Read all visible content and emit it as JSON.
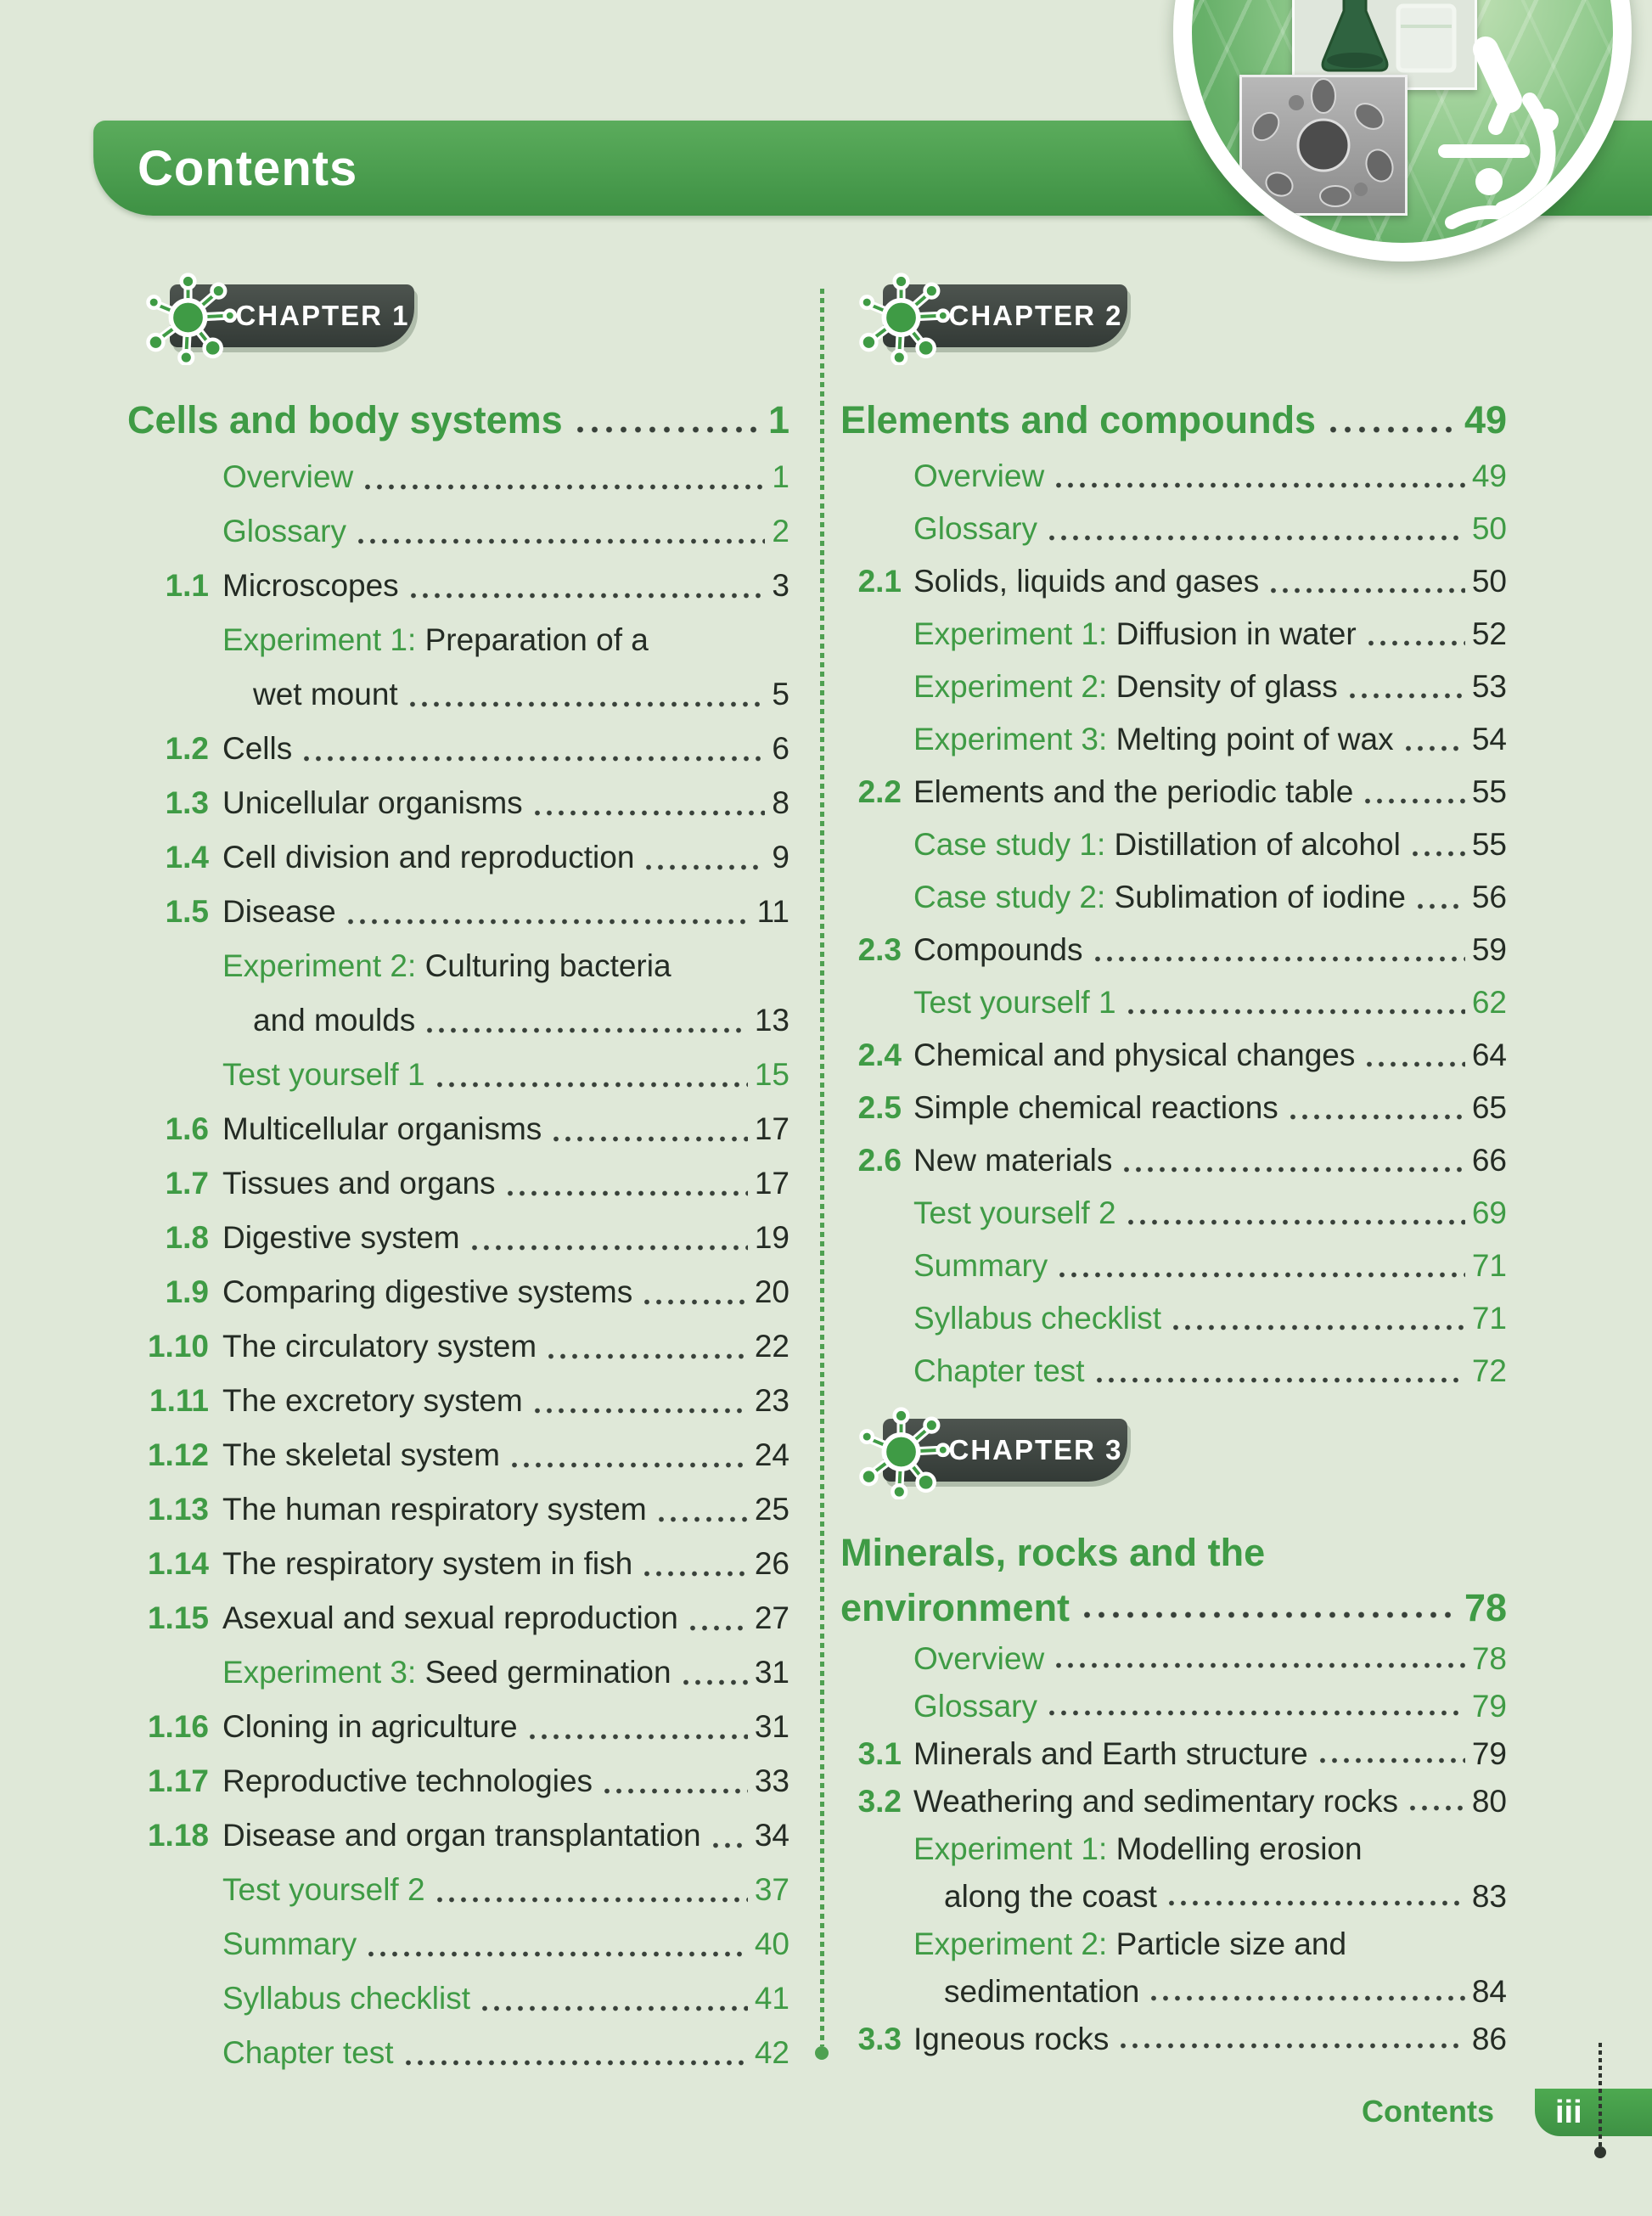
{
  "colors": {
    "page_background": "#dfe8d8",
    "header_green": "#4aa04e",
    "accent_green": "#3f9b45",
    "badge_dark": "#3e4541",
    "text_dark": "#242b24",
    "white": "#ffffff"
  },
  "header": {
    "title": "Contents"
  },
  "hero": {
    "icons": [
      "leaf-background",
      "beakers-photo",
      "cells-photo",
      "microscope-icon"
    ]
  },
  "footer": {
    "label": "Contents",
    "page_number": "iii"
  },
  "toc": {
    "chapters": [
      {
        "badge_label": "CHAPTER 1",
        "title": "Cells and body systems",
        "page": "1",
        "column": "left",
        "entries": [
          {
            "text": "Overview",
            "tone": "green",
            "page": "1"
          },
          {
            "text": "Glossary",
            "tone": "green",
            "page": "2"
          },
          {
            "num": "1.1",
            "text": "Microscopes",
            "tone": "dark",
            "page": "3"
          },
          {
            "prefix": "Experiment 1:",
            "text": "Preparation of a",
            "wrap": "wet mount",
            "tone": "dark",
            "page": "5"
          },
          {
            "num": "1.2",
            "text": "Cells",
            "tone": "dark",
            "page": "6"
          },
          {
            "num": "1.3",
            "text": "Unicellular organisms",
            "tone": "dark",
            "page": "8"
          },
          {
            "num": "1.4",
            "text": "Cell division and reproduction",
            "tone": "dark",
            "page": "9"
          },
          {
            "num": "1.5",
            "text": "Disease",
            "tone": "dark",
            "page": "11"
          },
          {
            "prefix": "Experiment 2:",
            "text": "Culturing bacteria",
            "wrap": "and moulds",
            "tone": "dark",
            "page": "13"
          },
          {
            "text": "Test yourself 1",
            "tone": "green",
            "page": "15"
          },
          {
            "num": "1.6",
            "text": "Multicellular organisms",
            "tone": "dark",
            "page": "17"
          },
          {
            "num": "1.7",
            "text": "Tissues and organs",
            "tone": "dark",
            "page": "17"
          },
          {
            "num": "1.8",
            "text": "Digestive system",
            "tone": "dark",
            "page": "19"
          },
          {
            "num": "1.9",
            "text": "Comparing digestive systems",
            "tone": "dark",
            "page": "20"
          },
          {
            "num": "1.10",
            "text": "The circulatory system",
            "tone": "dark",
            "page": "22"
          },
          {
            "num": "1.11",
            "text": "The excretory system",
            "tone": "dark",
            "page": "23"
          },
          {
            "num": "1.12",
            "text": "The skeletal system",
            "tone": "dark",
            "page": "24"
          },
          {
            "num": "1.13",
            "text": "The human respiratory system",
            "tone": "dark",
            "page": "25"
          },
          {
            "num": "1.14",
            "text": "The respiratory system in fish",
            "tone": "dark",
            "page": "26"
          },
          {
            "num": "1.15",
            "text": "Asexual and sexual reproduction",
            "tone": "dark",
            "page": "27"
          },
          {
            "prefix": "Experiment 3:",
            "text": "Seed germination",
            "tone": "dark",
            "page": "31"
          },
          {
            "num": "1.16",
            "text": "Cloning in agriculture",
            "tone": "dark",
            "page": "31"
          },
          {
            "num": "1.17",
            "text": "Reproductive technologies",
            "tone": "dark",
            "page": "33"
          },
          {
            "num": "1.18",
            "text": "Disease and organ transplantation",
            "tone": "dark",
            "page": "34"
          },
          {
            "text": "Test yourself 2",
            "tone": "green",
            "page": "37"
          },
          {
            "text": "Summary",
            "tone": "green",
            "page": "40"
          },
          {
            "text": "Syllabus checklist",
            "tone": "green",
            "page": "41"
          },
          {
            "text": "Chapter test",
            "tone": "green",
            "page": "42"
          }
        ]
      },
      {
        "badge_label": "CHAPTER 2",
        "title": "Elements and compounds",
        "page": "49",
        "column": "right",
        "entries": [
          {
            "text": "Overview",
            "tone": "green",
            "page": "49"
          },
          {
            "text": "Glossary",
            "tone": "green",
            "page": "50"
          },
          {
            "num": "2.1",
            "text": "Solids, liquids and gases",
            "tone": "dark",
            "page": "50"
          },
          {
            "prefix": "Experiment 1:",
            "text": "Diffusion in water",
            "tone": "dark",
            "page": "52"
          },
          {
            "prefix": "Experiment 2:",
            "text": "Density of glass",
            "tone": "dark",
            "page": "53"
          },
          {
            "prefix": "Experiment 3:",
            "text": "Melting point of wax",
            "tone": "dark",
            "page": "54"
          },
          {
            "num": "2.2",
            "text": "Elements and the periodic table",
            "tone": "dark",
            "page": "55"
          },
          {
            "prefix": "Case study 1:",
            "text": "Distillation of alcohol",
            "tone": "dark",
            "page": "55"
          },
          {
            "prefix": "Case study 2:",
            "text": "Sublimation of iodine",
            "tone": "dark",
            "page": "56"
          },
          {
            "num": "2.3",
            "text": "Compounds",
            "tone": "dark",
            "page": "59"
          },
          {
            "text": "Test yourself 1",
            "tone": "green",
            "page": "62"
          },
          {
            "num": "2.4",
            "text": "Chemical and physical changes",
            "tone": "dark",
            "page": "64"
          },
          {
            "num": "2.5",
            "text": "Simple chemical reactions",
            "tone": "dark",
            "page": "65"
          },
          {
            "num": "2.6",
            "text": "New materials",
            "tone": "dark",
            "page": "66"
          },
          {
            "text": "Test yourself 2",
            "tone": "green",
            "page": "69"
          },
          {
            "text": "Summary",
            "tone": "green",
            "page": "71"
          },
          {
            "text": "Syllabus checklist",
            "tone": "green",
            "page": "71"
          },
          {
            "text": "Chapter test",
            "tone": "green",
            "page": "72"
          }
        ]
      },
      {
        "badge_label": "CHAPTER 3",
        "title_line1": "Minerals, rocks and the",
        "title_line2": "environment",
        "page": "78",
        "column": "right",
        "entries": [
          {
            "text": "Overview",
            "tone": "green",
            "page": "78"
          },
          {
            "text": "Glossary",
            "tone": "green",
            "page": "79"
          },
          {
            "num": "3.1",
            "text": "Minerals and Earth structure",
            "tone": "dark",
            "page": "79"
          },
          {
            "num": "3.2",
            "text": "Weathering and sedimentary rocks",
            "tone": "dark",
            "page": "80"
          },
          {
            "prefix": "Experiment 1:",
            "text": "Modelling erosion",
            "wrap": "along the coast",
            "tone": "dark",
            "page": "83"
          },
          {
            "prefix": "Experiment 2:",
            "text": "Particle size and",
            "wrap": "sedimentation",
            "tone": "dark",
            "page": "84"
          },
          {
            "num": "3.3",
            "text": "Igneous rocks",
            "tone": "dark",
            "page": "86"
          }
        ]
      }
    ]
  }
}
